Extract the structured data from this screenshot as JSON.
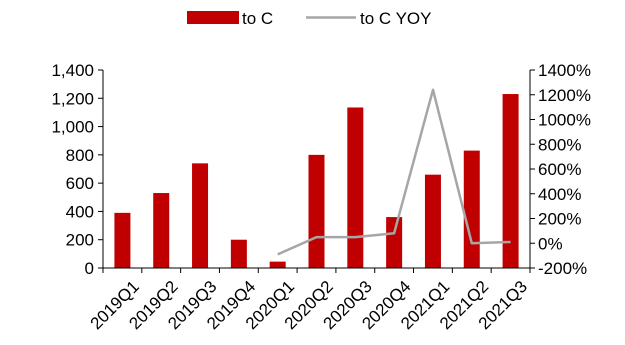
{
  "chart_data": {
    "type": "bar",
    "categories": [
      "2019Q1",
      "2019Q2",
      "2019Q3",
      "2019Q4",
      "2020Q1",
      "2020Q2",
      "2020Q3",
      "2020Q4",
      "2021Q1",
      "2021Q2",
      "2021Q3"
    ],
    "series": [
      {
        "name": "to C",
        "type": "bar",
        "axis": "left",
        "color": "#C00000",
        "values": [
          390,
          530,
          740,
          200,
          45,
          800,
          1135,
          360,
          660,
          830,
          1230
        ]
      },
      {
        "name": "to C YOY",
        "type": "line",
        "axis": "right",
        "color": "#A6A6A6",
        "values": [
          null,
          null,
          null,
          null,
          -90,
          50,
          50,
          80,
          1240,
          0,
          10
        ]
      }
    ],
    "y_left": {
      "range": [
        0,
        1400
      ],
      "ticks": [
        0,
        200,
        400,
        600,
        800,
        1000,
        1200,
        1400
      ],
      "tick_labels": [
        "0",
        "200",
        "400",
        "600",
        "800",
        "1,000",
        "1,200",
        "1,400"
      ]
    },
    "y_right": {
      "range": [
        -200,
        1400
      ],
      "ticks": [
        -200,
        0,
        200,
        400,
        600,
        800,
        1000,
        1200,
        1400
      ],
      "tick_labels": [
        "-200%",
        "0%",
        "200%",
        "400%",
        "600%",
        "800%",
        "1000%",
        "1200%",
        "1400%"
      ]
    },
    "legend_position": "top-center",
    "grid": false
  }
}
